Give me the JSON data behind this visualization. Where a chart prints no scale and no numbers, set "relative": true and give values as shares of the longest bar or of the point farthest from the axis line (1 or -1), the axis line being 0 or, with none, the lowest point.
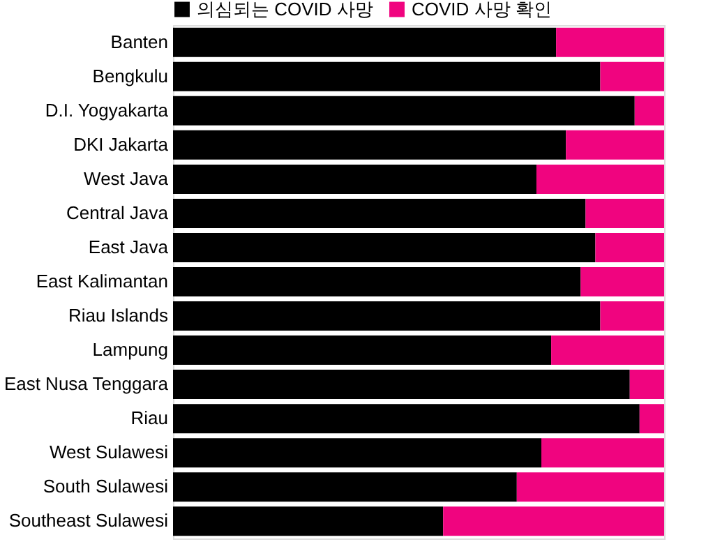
{
  "chart_data": {
    "type": "bar",
    "orientation": "horizontal",
    "stacked": true,
    "relative": true,
    "legend": "top left",
    "categories": [
      "Banten",
      "Bengkulu",
      "D.I. Yogyakarta",
      "DKI Jakarta",
      "West Java",
      "Central Java",
      "East Java",
      "East Kalimantan",
      "Riau Islands",
      "Lampung",
      "East Nusa Tenggara",
      "Riau",
      "West Sulawesi",
      "South Sulawesi",
      "Southeast Sulawesi"
    ],
    "series": [
      {
        "name": "의심되는 COVID 사망",
        "color": "#000000",
        "values": [
          0.78,
          0.87,
          0.94,
          0.8,
          0.74,
          0.84,
          0.86,
          0.83,
          0.87,
          0.77,
          0.93,
          0.95,
          0.75,
          0.7,
          0.55
        ]
      },
      {
        "name": "COVID 사망 확인",
        "color": "#f0047f",
        "values": [
          0.22,
          0.13,
          0.06,
          0.2,
          0.26,
          0.16,
          0.14,
          0.17,
          0.13,
          0.23,
          0.07,
          0.05,
          0.25,
          0.3,
          0.45
        ]
      }
    ]
  }
}
